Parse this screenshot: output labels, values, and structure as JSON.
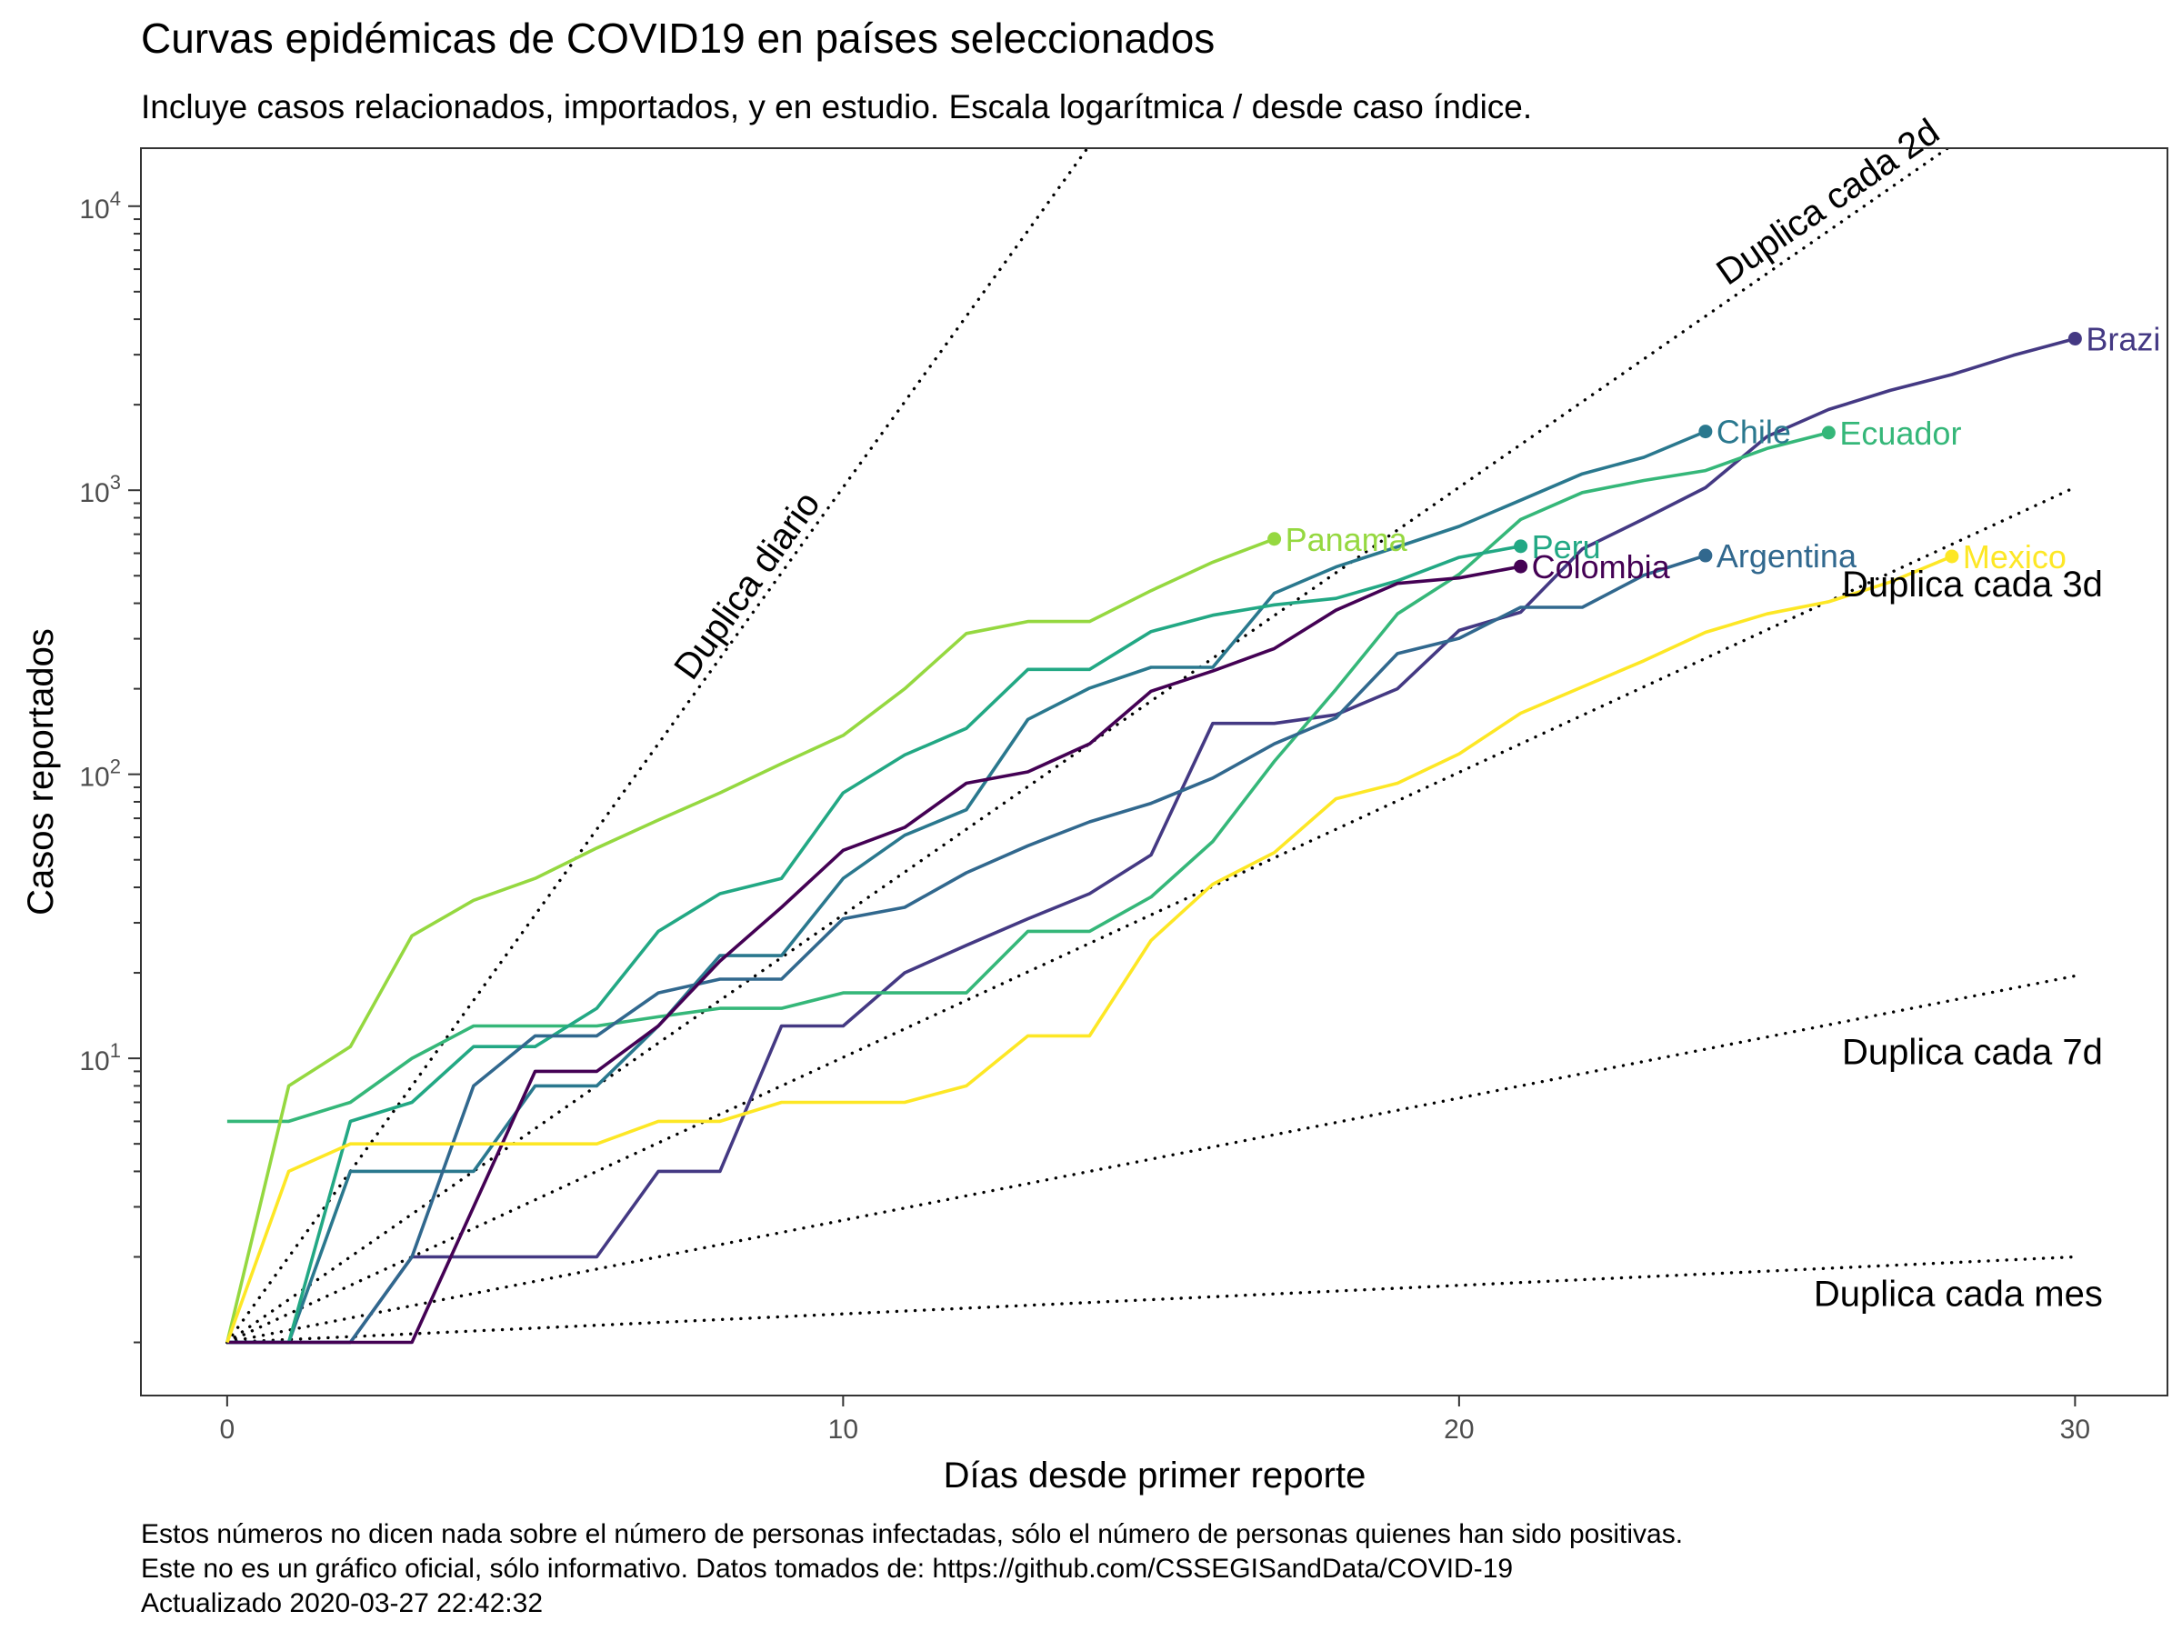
{
  "title": "Curvas epidémicas de COVID19 en países seleccionados",
  "subtitle": "Incluye casos relacionados, importados, y en estudio. Escala logarítmica / desde caso índice.",
  "caption": [
    "Estos números no dicen nada sobre el número de personas infectadas, sólo el número de personas quienes han sido positivas.",
    "Este no es un gráfico oficial, sólo informativo. Datos tomados de: https://github.com/CSSEGISandData/COVID-19",
    "Actualizado 2020-03-27 22:42:32"
  ],
  "chart_data": {
    "type": "line",
    "xlabel": "Días desde primer reporte",
    "ylabel": "Casos reportados",
    "y_scale": "log10",
    "xlim": [
      -1.4,
      31.5
    ],
    "ylim": [
      0.65,
      16000
    ],
    "x_ticks": [
      0,
      10,
      20,
      30
    ],
    "y_ticks": [
      {
        "value": 10,
        "base": "10",
        "exp": "1"
      },
      {
        "value": 100,
        "base": "10",
        "exp": "2"
      },
      {
        "value": 1000,
        "base": "10",
        "exp": "3"
      },
      {
        "value": 10000,
        "base": "10",
        "exp": "4"
      }
    ],
    "grid": false,
    "legend": "none (direct labels at line ends)",
    "reference_lines": [
      {
        "label": "Duplica diario",
        "doubling_days": 1,
        "label_placement": "along-line"
      },
      {
        "label": "Duplica cada 2d",
        "doubling_days": 2,
        "label_placement": "along-line"
      },
      {
        "label": "Duplica cada 3d",
        "doubling_days": 3,
        "label_placement": "right"
      },
      {
        "label": "Duplica cada 7d",
        "doubling_days": 7,
        "label_placement": "right"
      },
      {
        "label": "Duplica cada mes",
        "doubling_days": 30,
        "label_placement": "right"
      }
    ],
    "series": [
      {
        "name": "Brazil",
        "label": "Brazi",
        "color": "#443983",
        "x": [
          0,
          1,
          2,
          3,
          4,
          5,
          6,
          7,
          8,
          9,
          10,
          11,
          12,
          13,
          14,
          15,
          16,
          17,
          18,
          19,
          20,
          21,
          22,
          23,
          24,
          25,
          26,
          27,
          28,
          29,
          30
        ],
        "y": [
          1,
          1,
          1,
          2,
          2,
          2,
          2,
          4,
          4,
          13,
          13,
          20,
          25,
          31,
          38,
          52,
          151,
          151,
          162,
          200,
          321,
          372,
          621,
          793,
          1021,
          1546,
          1924,
          2247,
          2554,
          2985,
          3417
        ]
      },
      {
        "name": "Chile",
        "label": "Chile",
        "color": "#2A788E",
        "x": [
          0,
          1,
          2,
          3,
          4,
          5,
          6,
          7,
          8,
          9,
          10,
          11,
          12,
          13,
          14,
          15,
          16,
          17,
          18,
          19,
          20,
          21,
          22,
          23,
          24
        ],
        "y": [
          1,
          1,
          4,
          4,
          4,
          8,
          8,
          13,
          23,
          23,
          43,
          61,
          75,
          156,
          201,
          238,
          238,
          434,
          537,
          632,
          746,
          922,
          1142,
          1306,
          1610
        ]
      },
      {
        "name": "Ecuador",
        "label": "Ecuador",
        "color": "#35B779",
        "x": [
          0,
          1,
          2,
          3,
          4,
          5,
          6,
          7,
          8,
          9,
          10,
          11,
          12,
          13,
          14,
          15,
          16,
          17,
          18,
          19,
          20,
          21,
          22,
          23,
          24,
          25,
          26
        ],
        "y": [
          6,
          6,
          7,
          10,
          13,
          13,
          13,
          14,
          15,
          15,
          17,
          17,
          17,
          28,
          28,
          37,
          58,
          111,
          199,
          367,
          506,
          789,
          981,
          1082,
          1173,
          1403,
          1595
        ]
      },
      {
        "name": "Panama",
        "label": "Panama",
        "color": "#95D840",
        "x": [
          0,
          1,
          2,
          3,
          4,
          5,
          6,
          7,
          8,
          9,
          10,
          11,
          12,
          13,
          14,
          15,
          16,
          17
        ],
        "y": [
          1,
          8,
          11,
          27,
          36,
          43,
          55,
          69,
          86,
          109,
          137,
          200,
          313,
          345,
          345,
          443,
          558,
          674
        ]
      },
      {
        "name": "Peru",
        "label": "Peru",
        "color": "#22A884",
        "x": [
          0,
          1,
          2,
          3,
          4,
          5,
          6,
          7,
          8,
          9,
          10,
          11,
          12,
          13,
          14,
          15,
          16,
          17,
          18,
          19,
          20,
          21
        ],
        "y": [
          1,
          1,
          6,
          7,
          11,
          11,
          15,
          28,
          38,
          43,
          86,
          117,
          145,
          234,
          234,
          318,
          363,
          395,
          416,
          480,
          580,
          635
        ]
      },
      {
        "name": "Argentina",
        "label": "Argentina",
        "color": "#31688E",
        "x": [
          0,
          1,
          2,
          3,
          4,
          5,
          6,
          7,
          8,
          9,
          10,
          11,
          12,
          13,
          14,
          15,
          16,
          17,
          18,
          19,
          20,
          21,
          22,
          23,
          24
        ],
        "y": [
          1,
          1,
          1,
          2,
          8,
          12,
          12,
          17,
          19,
          19,
          31,
          34,
          45,
          56,
          68,
          79,
          97,
          128,
          158,
          266,
          301,
          387,
          387,
          502,
          589
        ]
      },
      {
        "name": "Colombia",
        "label": "Colombia",
        "color": "#440154",
        "x": [
          0,
          1,
          2,
          3,
          4,
          5,
          6,
          7,
          8,
          9,
          10,
          11,
          12,
          13,
          14,
          15,
          16,
          17,
          18,
          19,
          20,
          21
        ],
        "y": [
          1,
          1,
          1,
          1,
          3,
          9,
          9,
          13,
          22,
          34,
          54,
          65,
          93,
          102,
          128,
          196,
          231,
          277,
          378,
          470,
          491,
          539
        ]
      },
      {
        "name": "Mexico",
        "label": "Mexico",
        "color": "#FDE725",
        "x": [
          0,
          1,
          2,
          3,
          4,
          5,
          6,
          7,
          8,
          9,
          10,
          11,
          12,
          13,
          14,
          15,
          16,
          17,
          18,
          19,
          20,
          21,
          22,
          23,
          24,
          25,
          26,
          27,
          28
        ],
        "y": [
          1,
          4,
          5,
          5,
          5,
          5,
          5,
          6,
          6,
          7,
          7,
          7,
          8,
          12,
          12,
          26,
          41,
          53,
          82,
          93,
          118,
          164,
          203,
          251,
          316,
          367,
          405,
          475,
          585
        ]
      }
    ]
  }
}
